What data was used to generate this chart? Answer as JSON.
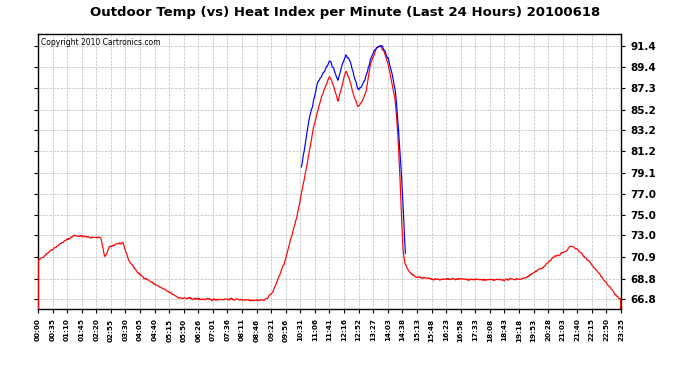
{
  "title": "Outdoor Temp (vs) Heat Index per Minute (Last 24 Hours) 20100618",
  "copyright_text": "Copyright 2010 Cartronics.com",
  "yticks": [
    66.8,
    68.8,
    70.9,
    73.0,
    75.0,
    77.0,
    79.1,
    81.2,
    83.2,
    85.2,
    87.3,
    89.4,
    91.4
  ],
  "ylim": [
    65.8,
    92.6
  ],
  "background_color": "#ffffff",
  "plot_bg_color": "#ffffff",
  "grid_color": "#bbbbbb",
  "red_line_color": "#ff0000",
  "blue_line_color": "#0000ff",
  "xtick_labels": [
    "00:00",
    "00:35",
    "01:10",
    "01:45",
    "02:20",
    "02:55",
    "03:30",
    "04:05",
    "04:40",
    "05:15",
    "05:50",
    "06:26",
    "07:01",
    "07:36",
    "08:11",
    "08:46",
    "09:21",
    "09:56",
    "10:31",
    "11:06",
    "11:41",
    "12:16",
    "12:52",
    "13:27",
    "14:03",
    "14:38",
    "15:13",
    "15:48",
    "16:23",
    "16:58",
    "17:33",
    "18:08",
    "18:43",
    "19:18",
    "19:53",
    "20:28",
    "21:03",
    "21:40",
    "22:15",
    "22:50",
    "23:25"
  ],
  "red_keypoints": [
    [
      0,
      70.5
    ],
    [
      30,
      71.5
    ],
    [
      60,
      72.3
    ],
    [
      90,
      73.0
    ],
    [
      130,
      72.8
    ],
    [
      155,
      72.8
    ],
    [
      165,
      70.8
    ],
    [
      175,
      71.8
    ],
    [
      195,
      72.2
    ],
    [
      210,
      72.2
    ],
    [
      225,
      70.5
    ],
    [
      250,
      69.2
    ],
    [
      290,
      68.2
    ],
    [
      350,
      66.9
    ],
    [
      400,
      66.8
    ],
    [
      430,
      66.75
    ],
    [
      470,
      66.8
    ],
    [
      500,
      66.75
    ],
    [
      540,
      66.7
    ],
    [
      560,
      66.7
    ],
    [
      580,
      67.5
    ],
    [
      610,
      70.5
    ],
    [
      640,
      75.0
    ],
    [
      660,
      79.0
    ],
    [
      680,
      83.5
    ],
    [
      700,
      86.5
    ],
    [
      710,
      87.5
    ],
    [
      720,
      88.5
    ],
    [
      730,
      87.5
    ],
    [
      740,
      86.0
    ],
    [
      750,
      87.5
    ],
    [
      760,
      89.0
    ],
    [
      770,
      88.0
    ],
    [
      780,
      86.5
    ],
    [
      790,
      85.5
    ],
    [
      800,
      86.0
    ],
    [
      810,
      87.0
    ],
    [
      820,
      89.5
    ],
    [
      835,
      91.2
    ],
    [
      845,
      91.4
    ],
    [
      855,
      90.8
    ],
    [
      865,
      89.5
    ],
    [
      875,
      87.5
    ],
    [
      882,
      86.0
    ],
    [
      888,
      83.0
    ],
    [
      893,
      79.0
    ],
    [
      897,
      75.0
    ],
    [
      901,
      71.5
    ],
    [
      906,
      70.2
    ],
    [
      915,
      69.5
    ],
    [
      930,
      69.0
    ],
    [
      960,
      68.8
    ],
    [
      1000,
      68.7
    ],
    [
      1040,
      68.75
    ],
    [
      1080,
      68.7
    ],
    [
      1120,
      68.65
    ],
    [
      1160,
      68.7
    ],
    [
      1200,
      68.8
    ],
    [
      1230,
      69.5
    ],
    [
      1250,
      70.0
    ],
    [
      1270,
      70.8
    ],
    [
      1290,
      71.2
    ],
    [
      1305,
      71.5
    ],
    [
      1315,
      72.0
    ],
    [
      1325,
      71.8
    ],
    [
      1340,
      71.3
    ],
    [
      1360,
      70.5
    ],
    [
      1380,
      69.5
    ],
    [
      1400,
      68.5
    ],
    [
      1420,
      67.5
    ],
    [
      1435,
      66.8
    ]
  ],
  "blue_keypoints": [
    [
      650,
      79.5
    ],
    [
      660,
      82.0
    ],
    [
      670,
      84.5
    ],
    [
      680,
      86.0
    ],
    [
      690,
      87.8
    ],
    [
      700,
      88.5
    ],
    [
      710,
      89.2
    ],
    [
      720,
      90.0
    ],
    [
      730,
      89.2
    ],
    [
      740,
      88.0
    ],
    [
      750,
      89.5
    ],
    [
      760,
      90.5
    ],
    [
      770,
      90.0
    ],
    [
      780,
      88.5
    ],
    [
      790,
      87.2
    ],
    [
      800,
      87.5
    ],
    [
      810,
      88.5
    ],
    [
      820,
      90.0
    ],
    [
      830,
      91.0
    ],
    [
      840,
      91.4
    ],
    [
      848,
      91.4
    ],
    [
      855,
      91.0
    ],
    [
      865,
      90.0
    ],
    [
      875,
      88.5
    ],
    [
      882,
      87.0
    ],
    [
      887,
      85.0
    ],
    [
      892,
      82.0
    ],
    [
      897,
      79.0
    ],
    [
      901,
      76.0
    ],
    [
      904,
      73.5
    ],
    [
      907,
      71.0
    ]
  ]
}
